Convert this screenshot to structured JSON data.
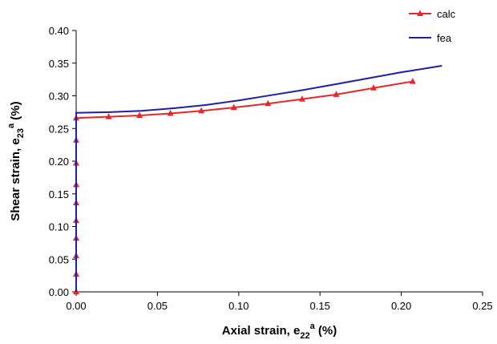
{
  "chart_data": {
    "type": "line",
    "xlabel": [
      "Axial strain, e",
      "22",
      "a",
      " (%)"
    ],
    "ylabel": [
      "Shear strain, e",
      "23",
      "a",
      " (%)"
    ],
    "xlim": [
      0,
      0.25
    ],
    "ylim": [
      0,
      0.4
    ],
    "xticks": [
      {
        "value": 0,
        "label": "0.00"
      },
      {
        "value": 0.05,
        "label": "0.05"
      },
      {
        "value": 0.1,
        "label": "0.10"
      },
      {
        "value": 0.15,
        "label": "0.15"
      },
      {
        "value": 0.2,
        "label": "0.20"
      },
      {
        "value": 0.25,
        "label": "0.25"
      }
    ],
    "yticks": [
      {
        "value": 0,
        "label": "0.00"
      },
      {
        "value": 0.05,
        "label": "0.05"
      },
      {
        "value": 0.1,
        "label": "0.10"
      },
      {
        "value": 0.15,
        "label": "0.15"
      },
      {
        "value": 0.2,
        "label": "0.20"
      },
      {
        "value": 0.25,
        "label": "0.25"
      },
      {
        "value": 0.3,
        "label": "0.30"
      },
      {
        "value": 0.35,
        "label": "0.35"
      },
      {
        "value": 0.4,
        "label": "0.40"
      }
    ],
    "grid": false,
    "legend": "top-right",
    "series": [
      {
        "name": "calc",
        "color": "#e8262a",
        "marker": "triangle",
        "x": [
          0,
          0,
          0,
          0,
          0,
          0,
          0,
          0,
          0,
          0,
          0.02,
          0.039,
          0.058,
          0.077,
          0.097,
          0.118,
          0.139,
          0.16,
          0.183,
          0.207
        ],
        "values": [
          0,
          0.027,
          0.055,
          0.082,
          0.109,
          0.136,
          0.164,
          0.197,
          0.232,
          0.266,
          0.268,
          0.27,
          0.273,
          0.277,
          0.282,
          0.288,
          0.295,
          0.302,
          0.312,
          0.322
        ]
      },
      {
        "name": "fea",
        "color": "#1f1fa0",
        "marker": "none",
        "x": [
          0,
          0,
          0.02,
          0.04,
          0.06,
          0.08,
          0.1,
          0.12,
          0.14,
          0.16,
          0.18,
          0.2,
          0.225
        ],
        "values": [
          0,
          0.274,
          0.275,
          0.277,
          0.281,
          0.286,
          0.293,
          0.301,
          0.309,
          0.318,
          0.327,
          0.336,
          0.346
        ]
      }
    ]
  }
}
